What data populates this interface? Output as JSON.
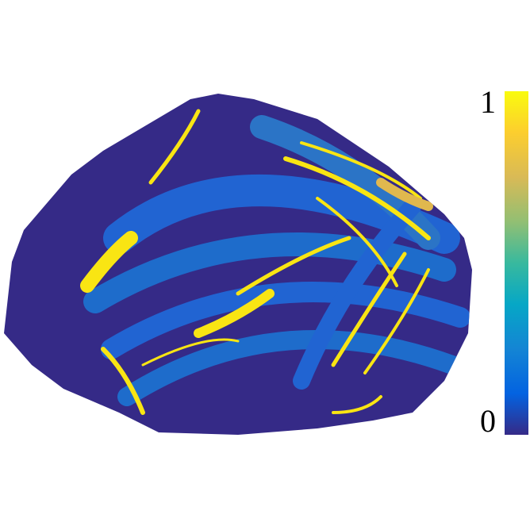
{
  "colorbar": {
    "lim": [
      0,
      1
    ],
    "ticks": [
      0,
      1
    ]
  }
}
